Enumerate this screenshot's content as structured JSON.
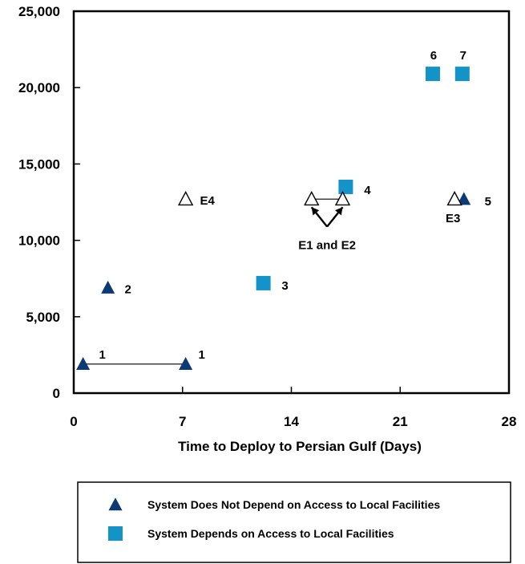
{
  "chart_data": {
    "type": "scatter",
    "title": "",
    "xlabel": "Time to Deploy to Persian Gulf (Days)",
    "ylabel": "",
    "xlim": [
      0,
      28
    ],
    "ylim": [
      0,
      25000
    ],
    "x_ticks": [
      "0",
      "7",
      "14",
      "21",
      "28"
    ],
    "y_ticks": [
      "0",
      "5,000",
      "10,000",
      "15,000",
      "20,000",
      "25,000"
    ],
    "grid": false,
    "legend_position": "bottom",
    "colors": {
      "does_not_depend": "#0b3a75",
      "depends": "#1493c9",
      "open": "#000000"
    },
    "legend": [
      {
        "marker": "triangle",
        "label": "System Does Not Depend on Access to Local Facilities"
      },
      {
        "marker": "square",
        "label": "System Depends on Access to Local Facilities"
      }
    ],
    "points": [
      {
        "label": "1",
        "marker": "triangle",
        "x": 0.6,
        "y": 1900
      },
      {
        "label": "1",
        "marker": "triangle",
        "x": 7.2,
        "y": 1900
      },
      {
        "label": "2",
        "marker": "triangle",
        "x": 2.2,
        "y": 6900
      },
      {
        "label": "3",
        "marker": "square",
        "x": 12.2,
        "y": 7200
      },
      {
        "label": "4",
        "marker": "square",
        "x": 17.5,
        "y": 13500
      },
      {
        "label": "5",
        "marker": "triangle",
        "x": 25.1,
        "y": 12700
      },
      {
        "label": "6",
        "marker": "square",
        "x": 23.1,
        "y": 20900
      },
      {
        "label": "7",
        "marker": "square",
        "x": 25.0,
        "y": 20900
      },
      {
        "label": "E1",
        "marker": "open-triangle",
        "x": 15.3,
        "y": 12700
      },
      {
        "label": "E2",
        "marker": "open-triangle",
        "x": 17.3,
        "y": 12700
      },
      {
        "label": "E3",
        "marker": "open-triangle",
        "x": 24.5,
        "y": 12700
      },
      {
        "label": "E4",
        "marker": "open-triangle",
        "x": 7.2,
        "y": 12700
      }
    ],
    "annotations": {
      "connector_1": {
        "from_x": 0.6,
        "to_x": 7.2,
        "y": 1900
      },
      "connector_e1_e2": {
        "from_x": 15.3,
        "to_x": 17.3,
        "y": 12700
      },
      "e1e2_label": "E1 and E2",
      "e1e2_arrow_tip": {
        "x": 16.3,
        "y": 10900
      }
    }
  }
}
